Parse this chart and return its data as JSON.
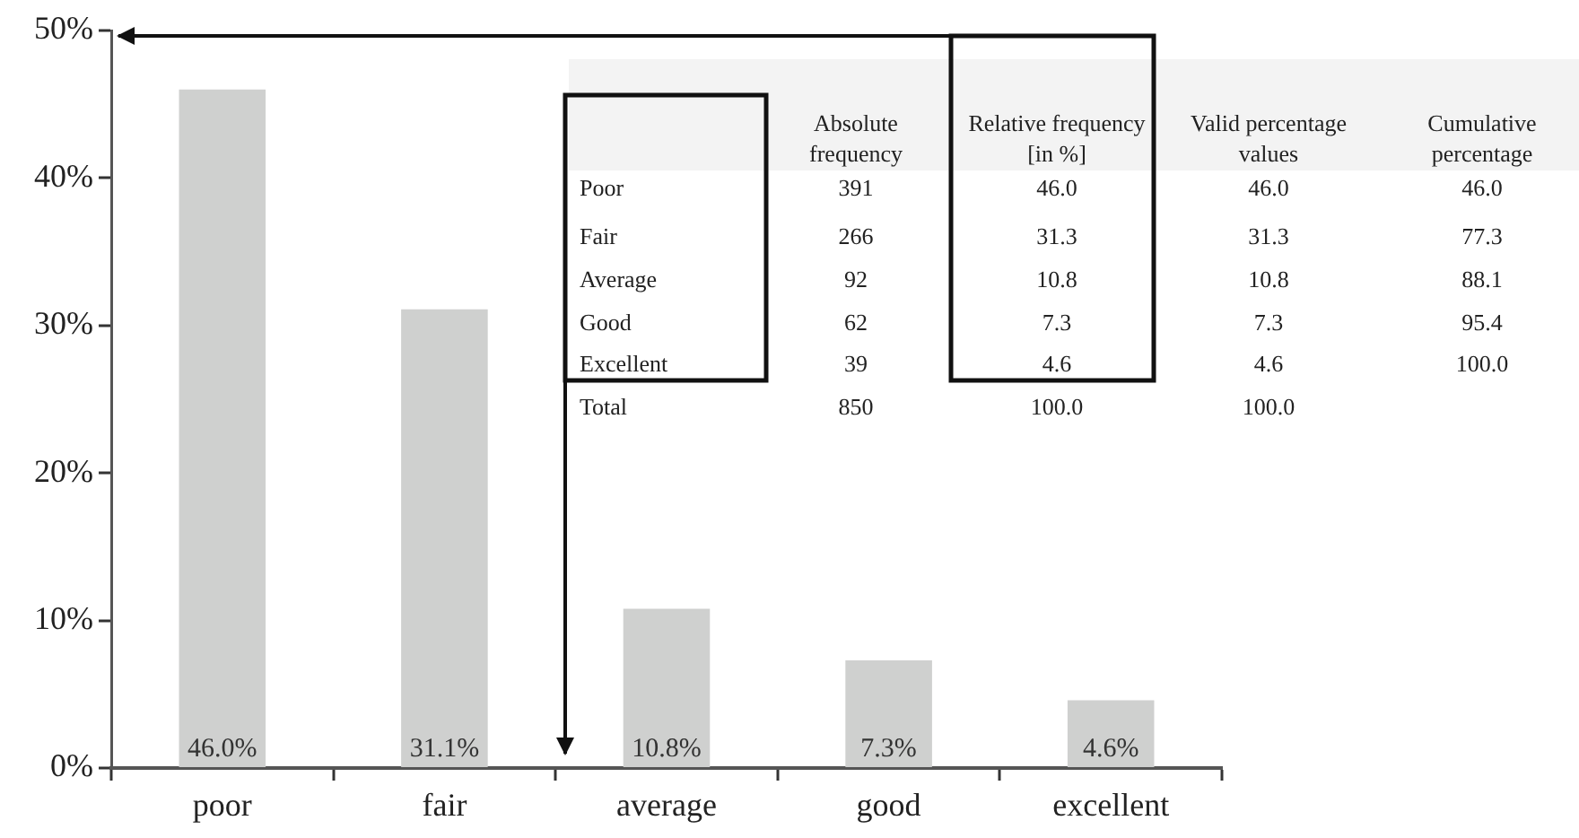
{
  "chart_data": {
    "type": "bar",
    "categories": [
      "poor",
      "fair",
      "average",
      "good",
      "excellent"
    ],
    "values": [
      46.0,
      31.1,
      10.8,
      7.3,
      4.6
    ],
    "value_labels": [
      "46.0%",
      "31.1%",
      "10.8%",
      "7.3%",
      "4.6%"
    ],
    "color": "#cfd0cf",
    "ylim": [
      0,
      50
    ],
    "yticks": [
      {
        "value": 0,
        "label": "0%"
      },
      {
        "value": 10,
        "label": "10%"
      },
      {
        "value": 20,
        "label": "20%"
      },
      {
        "value": 30,
        "label": "30%"
      },
      {
        "value": 40,
        "label": "40%"
      },
      {
        "value": 50,
        "label": "50%"
      }
    ],
    "grid": false,
    "legend": false,
    "annotations": [
      "Absolute frequency",
      "Relative frequency [in %]",
      "Valid percentage values",
      "Cumulative percentage",
      "Poor",
      "391",
      "46.0",
      "46.0",
      "46.0",
      "Fair",
      "266",
      "31.3",
      "31.3",
      "77.3",
      "Average",
      "92",
      "10.8",
      "10.8",
      "88.1",
      "Good",
      "62",
      "7.3",
      "7.3",
      "95.4",
      "Excellent",
      "39",
      "4.6",
      "4.6",
      "100.0",
      "Total",
      "850",
      "100.0",
      "100.0"
    ]
  }
}
